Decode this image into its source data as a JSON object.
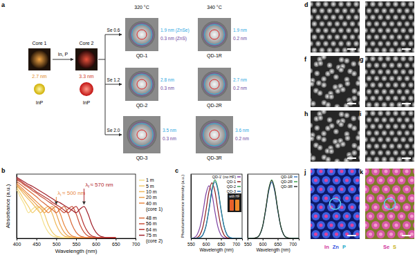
{
  "panel_labels": [
    "a",
    "b",
    "c",
    "d",
    "f",
    "g",
    "h",
    "i",
    "j",
    "k"
  ],
  "schematic": {
    "cores": [
      {
        "label": "Core 1",
        "size": "2.7 nm",
        "material": "InP"
      },
      {
        "label": "Core 2",
        "size": "3.3 nm",
        "material": "InP"
      }
    ],
    "growth": "In, P",
    "temperatures": [
      "320 °C",
      "340 °C"
    ],
    "rows": [
      {
        "precursor": "Se 0.6",
        "dots": [
          {
            "name": "QD-1",
            "znse": "1.9 nm (ZnSe)",
            "zns": "0.3 nm (ZnS)"
          },
          {
            "name": "QD-1R",
            "znse": "1.9 nm",
            "zns": "0.2 nm"
          }
        ]
      },
      {
        "precursor": "Se 1.2",
        "dots": [
          {
            "name": "QD-2",
            "znse": "2.8 nm",
            "zns": "0.3 nm"
          },
          {
            "name": "QD-2R",
            "znse": "2.7 nm",
            "zns": "0.2 nm"
          }
        ]
      },
      {
        "precursor": "Se 2.0",
        "dots": [
          {
            "name": "QD-3",
            "znse": "3.5 nm",
            "zns": "0.3 nm"
          },
          {
            "name": "QD-3R",
            "znse": "3.6 nm",
            "zns": "0.2 nm"
          }
        ]
      }
    ]
  },
  "chart_data": [
    {
      "type": "line",
      "x_label": "Wavelength (nm)",
      "y_label": "Absorbance (a.u.)",
      "x": [
        400,
        410,
        420,
        430,
        440,
        450,
        460,
        470,
        480,
        490,
        500,
        510,
        520,
        530,
        540,
        550,
        560,
        570,
        580,
        590,
        600,
        610,
        620,
        630,
        640,
        650
      ],
      "xlim": [
        400,
        700
      ],
      "xticks": [
        400,
        450,
        500,
        550,
        600,
        650,
        700
      ],
      "ylim": [
        0,
        1.05
      ],
      "tick_labels": "x",
      "legend": "right",
      "series": [
        {
          "name": "1 m",
          "color": "#f4e08c",
          "values": [
            0.8,
            0.67,
            0.55,
            0.42,
            0.48,
            0.52,
            0.4,
            0.22,
            0.1,
            0.04,
            0.02,
            0.01,
            0.01,
            0.01,
            0.01,
            0.01,
            0.01,
            0.01,
            0.01,
            0.01,
            0.01,
            0.01,
            0.01,
            0.01,
            0.01,
            0.01
          ]
        },
        {
          "name": "5 m",
          "color": "#f2cd6c",
          "values": [
            0.83,
            0.73,
            0.62,
            0.52,
            0.42,
            0.48,
            0.52,
            0.4,
            0.22,
            0.1,
            0.04,
            0.02,
            0.01,
            0.01,
            0.01,
            0.01,
            0.01,
            0.01,
            0.01,
            0.01,
            0.01,
            0.01,
            0.01,
            0.01,
            0.01,
            0.01
          ]
        },
        {
          "name": "10 m",
          "color": "#efb85a",
          "values": [
            0.86,
            0.79,
            0.71,
            0.64,
            0.57,
            0.49,
            0.42,
            0.48,
            0.52,
            0.4,
            0.22,
            0.1,
            0.04,
            0.02,
            0.01,
            0.01,
            0.01,
            0.01,
            0.01,
            0.01,
            0.01,
            0.01,
            0.01,
            0.01,
            0.01,
            0.01
          ]
        },
        {
          "name": "20 m",
          "color": "#eca04c",
          "values": [
            0.88,
            0.81,
            0.75,
            0.68,
            0.62,
            0.55,
            0.49,
            0.42,
            0.48,
            0.52,
            0.4,
            0.22,
            0.1,
            0.04,
            0.02,
            0.01,
            0.01,
            0.01,
            0.01,
            0.01,
            0.01,
            0.01,
            0.01,
            0.01,
            0.01,
            0.01
          ]
        },
        {
          "name": "40 m",
          "group": "(core 1)",
          "color": "#e8873f",
          "values": [
            0.9,
            0.84,
            0.78,
            0.72,
            0.66,
            0.6,
            0.54,
            0.48,
            0.42,
            0.48,
            0.52,
            0.4,
            0.22,
            0.1,
            0.04,
            0.02,
            0.01,
            0.01,
            0.01,
            0.01,
            0.01,
            0.01,
            0.01,
            0.01,
            0.01,
            0.01
          ]
        },
        {
          "name": "48 m",
          "color": "#d96a3a",
          "values": [
            0.93,
            0.88,
            0.83,
            0.78,
            0.73,
            0.68,
            0.62,
            0.57,
            0.52,
            0.47,
            0.42,
            0.48,
            0.52,
            0.4,
            0.22,
            0.1,
            0.04,
            0.02,
            0.01,
            0.01,
            0.01,
            0.01,
            0.01,
            0.01,
            0.01,
            0.01
          ]
        },
        {
          "name": "56 m",
          "color": "#c95038",
          "values": [
            0.96,
            0.92,
            0.87,
            0.83,
            0.78,
            0.74,
            0.69,
            0.65,
            0.6,
            0.56,
            0.51,
            0.47,
            0.42,
            0.48,
            0.52,
            0.4,
            0.22,
            0.1,
            0.04,
            0.02,
            0.01,
            0.01,
            0.01,
            0.01,
            0.01,
            0.01
          ]
        },
        {
          "name": "64 m",
          "color": "#b63532",
          "values": [
            0.98,
            0.94,
            0.89,
            0.85,
            0.81,
            0.76,
            0.72,
            0.68,
            0.64,
            0.59,
            0.55,
            0.51,
            0.46,
            0.42,
            0.48,
            0.52,
            0.4,
            0.22,
            0.1,
            0.04,
            0.02,
            0.01,
            0.01,
            0.01,
            0.01,
            0.01
          ]
        },
        {
          "name": "75 m",
          "group": "(core 2)",
          "color": "#a0202a",
          "values": [
            1.0,
            0.96,
            0.92,
            0.88,
            0.85,
            0.81,
            0.77,
            0.73,
            0.69,
            0.65,
            0.61,
            0.58,
            0.54,
            0.5,
            0.46,
            0.42,
            0.48,
            0.52,
            0.4,
            0.22,
            0.1,
            0.04,
            0.02,
            0.01,
            0.01,
            0.01
          ]
        }
      ],
      "annotations": [
        {
          "symbol": "λ",
          "subscript": "i",
          "text": "≈ 500 nm",
          "x": 500,
          "y": 0.52,
          "color": "#e8873f"
        },
        {
          "symbol": "λ",
          "subscript": "f",
          "text": "≈ 570 nm",
          "x": 570,
          "y": 0.52,
          "color": "#b0242c"
        }
      ]
    },
    {
      "type": "line",
      "x_label": "Wavelength (nm)",
      "y_label": "Photoluminescence intensity (a.u.)",
      "x": [
        550,
        560,
        570,
        580,
        590,
        600,
        610,
        620,
        630,
        640,
        650,
        660,
        670,
        680,
        690,
        700,
        710,
        720
      ],
      "xlim": [
        550,
        720
      ],
      "xticks": [
        550,
        600,
        650,
        700
      ],
      "ylim": [
        0,
        1.1
      ],
      "tick_labels": "x",
      "legend": "upper right",
      "series": [
        {
          "name": "QD-1' (no HF)",
          "color": "#7b3fa0",
          "values": [
            0.002,
            0.012,
            0.057,
            0.19,
            0.451,
            0.757,
            0.9,
            0.757,
            0.451,
            0.19,
            0.057,
            0.012,
            0.002,
            0,
            0,
            0,
            0,
            0
          ]
        },
        {
          "name": "QD-1",
          "color": "#8b1a1a",
          "values": [
            0,
            0.002,
            0.012,
            0.06,
            0.2,
            0.476,
            0.799,
            0.95,
            0.799,
            0.476,
            0.2,
            0.06,
            0.012,
            0.002,
            0,
            0,
            0,
            0
          ]
        },
        {
          "name": "QD-2",
          "color": "#2e9a4a",
          "values": [
            0,
            0,
            0.002,
            0.013,
            0.063,
            0.211,
            0.501,
            0.841,
            1,
            0.841,
            0.501,
            0.211,
            0.063,
            0.013,
            0.002,
            0,
            0,
            0
          ]
        },
        {
          "name": "QD-3",
          "color": "#2a6fb0",
          "values": [
            0,
            0,
            0.002,
            0.013,
            0.061,
            0.205,
            0.486,
            0.816,
            0.97,
            0.816,
            0.486,
            0.205,
            0.061,
            0.013,
            0.002,
            0,
            0,
            0
          ]
        }
      ],
      "annotations": [
        {
          "text": "with HF"
        }
      ]
    },
    {
      "type": "line",
      "x_label": "Wavelength (nm)",
      "x": [
        550,
        560,
        570,
        580,
        590,
        600,
        610,
        620,
        630,
        640,
        650,
        660,
        670,
        680,
        690,
        700,
        710,
        720
      ],
      "xlim": [
        550,
        720
      ],
      "xticks": [
        550,
        600,
        650,
        700
      ],
      "ylim": [
        0,
        1.1
      ],
      "tick_labels": "x",
      "legend": "upper right",
      "series": [
        {
          "name": "QD-1R",
          "color": "#3a78c2",
          "values": [
            0,
            0,
            0.002,
            0.012,
            0.06,
            0.203,
            0.481,
            0.807,
            0.96,
            0.807,
            0.481,
            0.203,
            0.06,
            0.012,
            0.002,
            0,
            0,
            0
          ]
        },
        {
          "name": "QD-2R",
          "color": "#3aa04a",
          "values": [
            0,
            0,
            0.002,
            0.013,
            0.063,
            0.211,
            0.501,
            0.841,
            1,
            0.841,
            0.501,
            0.211,
            0.063,
            0.013,
            0.002,
            0,
            0,
            0
          ]
        },
        {
          "name": "QD-3R",
          "color": "#333333",
          "values": [
            0,
            0,
            0.002,
            0.013,
            0.062,
            0.209,
            0.496,
            0.833,
            0.99,
            0.833,
            0.496,
            0.209,
            0.062,
            0.013,
            0.002,
            0,
            0,
            0
          ]
        }
      ]
    }
  ],
  "micrographs": {
    "j_legend": [
      "In",
      "Zn",
      "P"
    ],
    "k_legend": [
      "Se",
      "S"
    ]
  }
}
